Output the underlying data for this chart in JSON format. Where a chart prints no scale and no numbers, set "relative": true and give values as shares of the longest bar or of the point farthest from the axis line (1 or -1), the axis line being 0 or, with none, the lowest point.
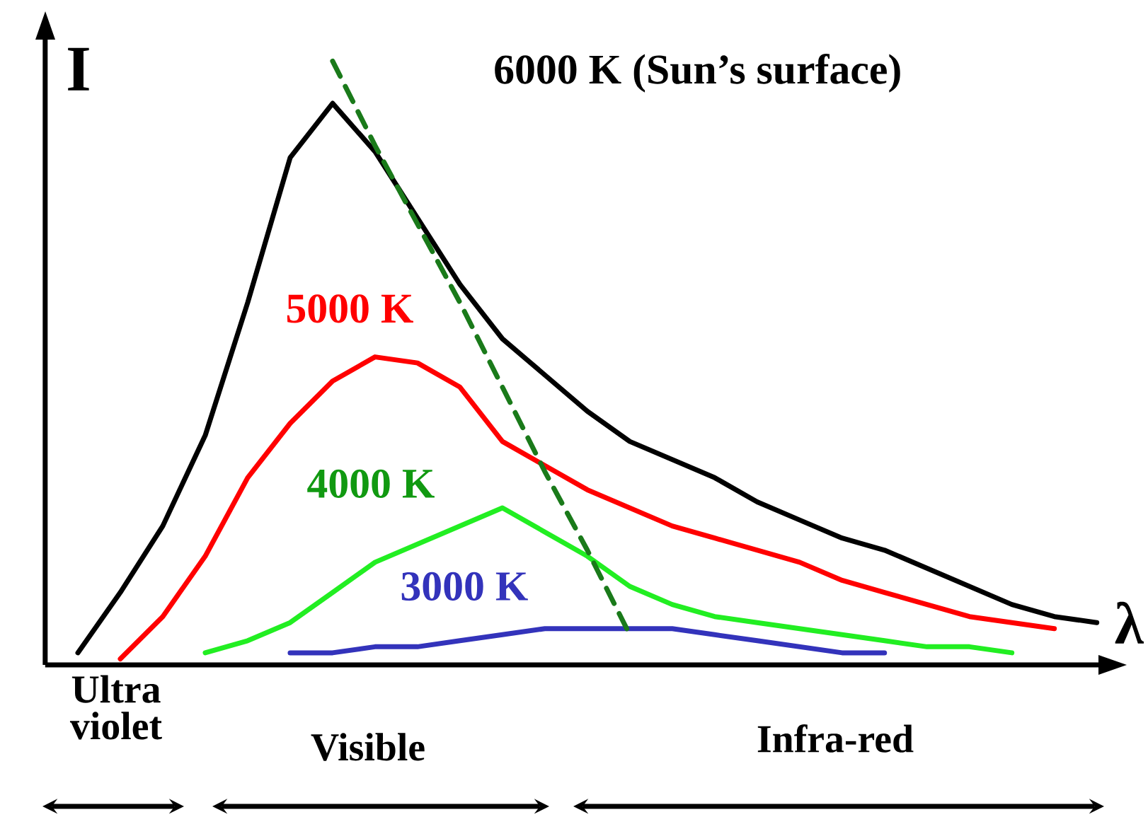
{
  "chart_data": {
    "type": "line",
    "relative": true,
    "xlabel": "λ",
    "ylabel": "I",
    "categories": [
      null,
      null,
      null,
      null,
      null,
      null,
      null,
      null,
      null,
      null,
      null,
      null,
      null,
      null,
      null,
      null,
      null,
      null,
      null,
      null,
      null,
      null,
      null,
      null,
      null
    ],
    "series": [
      {
        "name": "6000 K  (Sun’s surface)",
        "color": "#000000",
        "line_style": "solid",
        "values": [
          0.02,
          0.12,
          0.23,
          0.38,
          0.6,
          0.84,
          0.93,
          0.85,
          0.74,
          0.63,
          0.54,
          0.48,
          0.42,
          0.37,
          0.34,
          0.31,
          0.27,
          0.24,
          0.21,
          0.19,
          0.16,
          0.13,
          0.1,
          0.08,
          0.07
        ]
      },
      {
        "name": "5000 K",
        "color": "#ff0000",
        "line_style": "solid",
        "values": [
          null,
          0.01,
          0.08,
          0.18,
          0.31,
          0.4,
          0.47,
          0.51,
          0.5,
          0.46,
          0.37,
          0.33,
          0.29,
          0.26,
          0.23,
          0.21,
          0.19,
          0.17,
          0.14,
          0.12,
          0.1,
          0.08,
          0.07,
          0.06,
          null
        ]
      },
      {
        "name": "4000 K",
        "color": "#22ee22",
        "line_style": "solid",
        "values": [
          null,
          null,
          null,
          0.02,
          0.04,
          0.07,
          0.12,
          0.17,
          0.2,
          0.23,
          0.26,
          0.22,
          0.18,
          0.13,
          0.1,
          0.08,
          0.07,
          0.06,
          0.05,
          0.04,
          0.03,
          0.03,
          0.02,
          null,
          null
        ]
      },
      {
        "name": "3000 K",
        "color": "#3333bb",
        "line_style": "solid",
        "values": [
          null,
          null,
          null,
          null,
          null,
          0.02,
          0.02,
          0.03,
          0.03,
          0.04,
          0.05,
          0.06,
          0.06,
          0.06,
          0.06,
          0.05,
          0.04,
          0.03,
          0.02,
          0.02,
          null,
          null,
          null,
          null,
          null
        ]
      },
      {
        "color": "#1a7a1a",
        "line_style": "dashed",
        "values": [
          null,
          null,
          null,
          null,
          null,
          null,
          1.0,
          0.86,
          0.73,
          0.6,
          0.46,
          0.32,
          0.19,
          0.05,
          null,
          null,
          null,
          null,
          null,
          null,
          null,
          null,
          null,
          null,
          null
        ]
      }
    ],
    "annotations": [
      "Ultra violet",
      "Visible",
      "Infra-red"
    ]
  }
}
